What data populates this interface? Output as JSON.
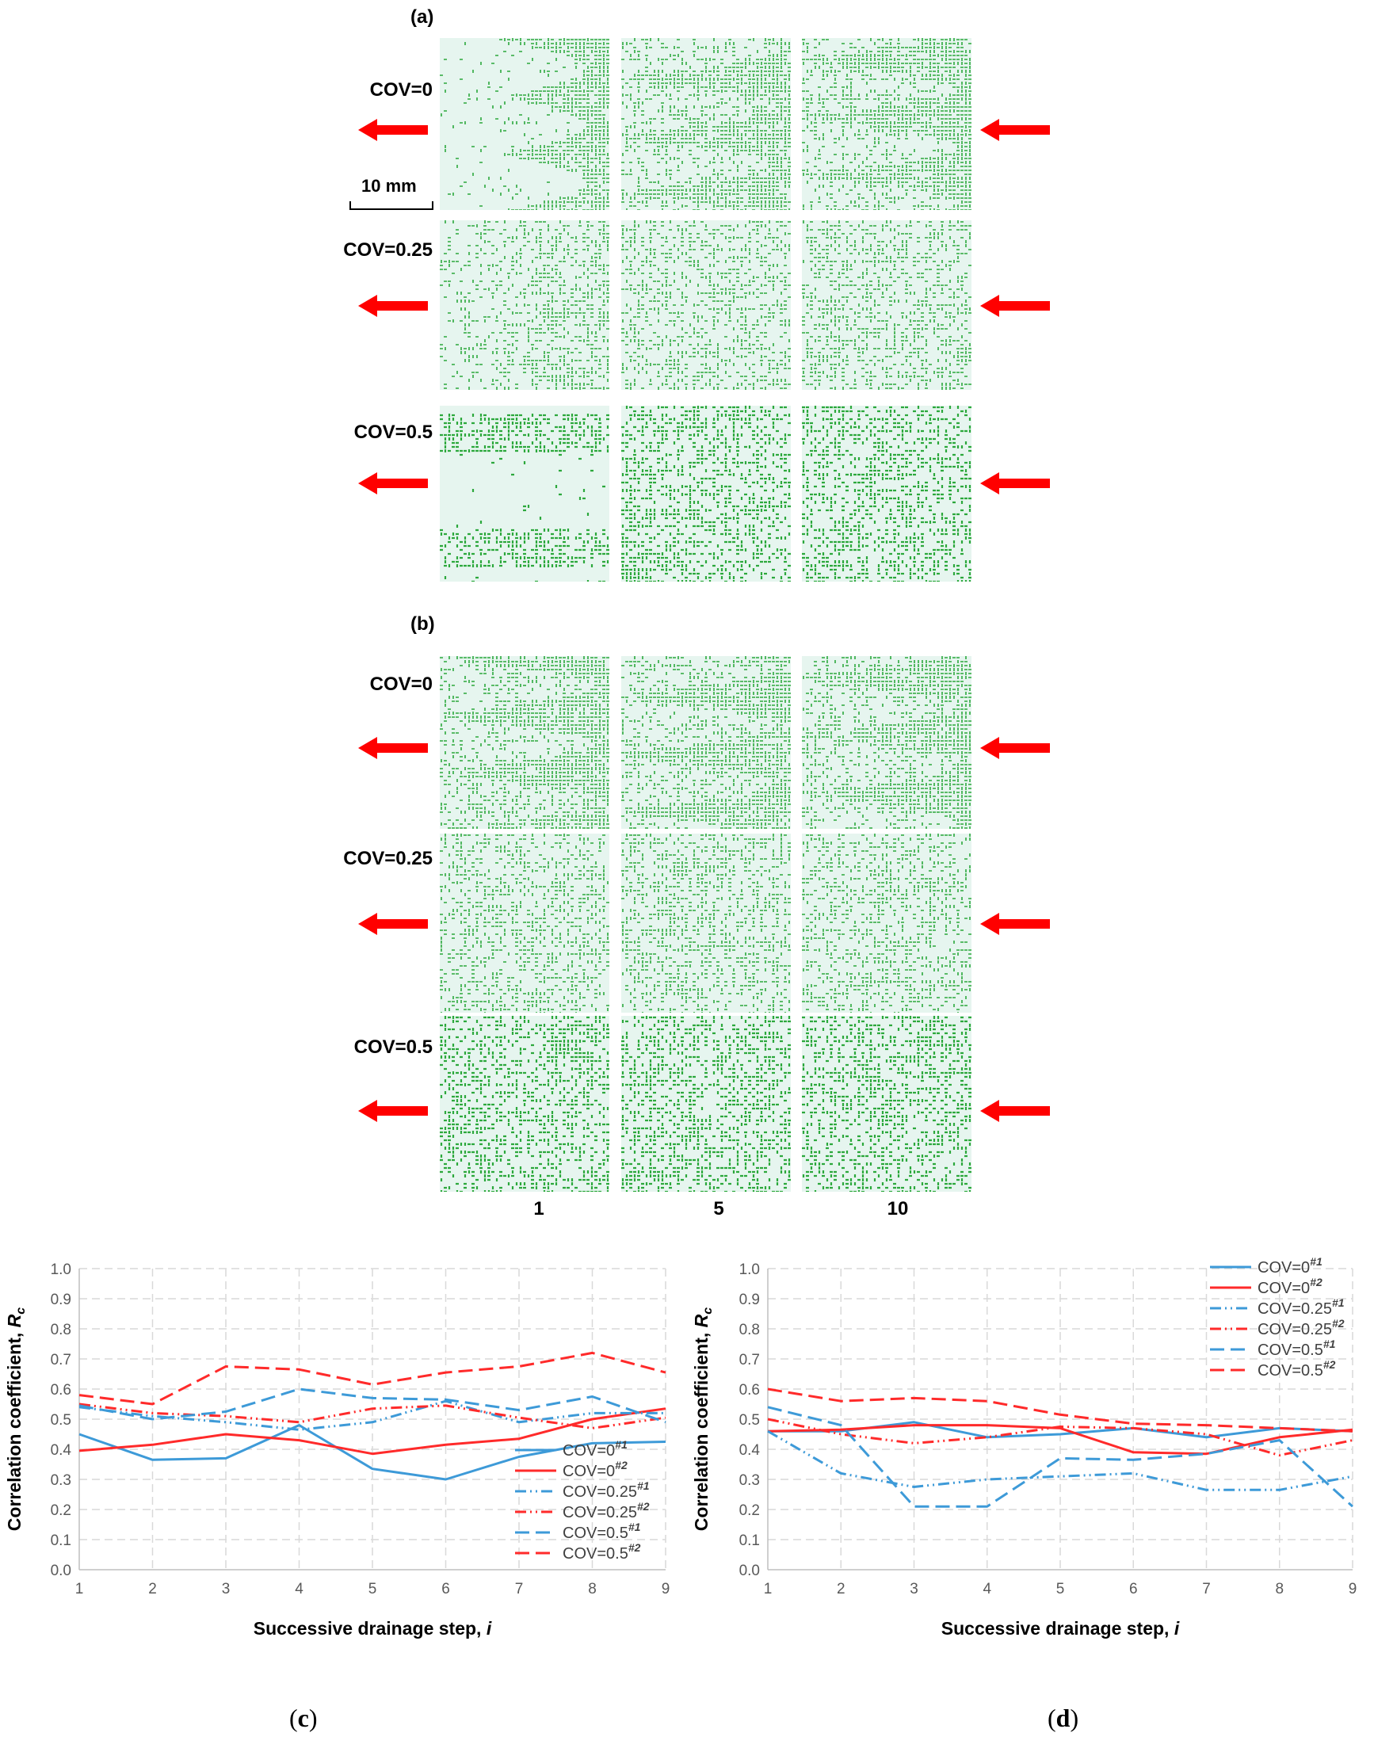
{
  "top": {
    "panel_a_label": "(a)",
    "panel_b_label": "(b)",
    "scale_bar_label": "10 mm",
    "row_labels": [
      "COV=0",
      "COV=0.25",
      "COV=0.5"
    ],
    "column_step_labels": [
      "1",
      "5",
      "10"
    ],
    "colors": {
      "fluid": "#2ca83c",
      "background": "#e6f5ef",
      "arrow": "#ff0000"
    }
  },
  "captions": {
    "c": "c",
    "d": "d"
  },
  "chart_data": [
    {
      "id": "c",
      "type": "line",
      "title": "",
      "xlabel": "Successive drainage step, ",
      "xlabel_var": "i",
      "ylabel": "Correlation coefficient, ",
      "ylabel_var": "R",
      "ylabel_sub": "c",
      "x": [
        1,
        2,
        3,
        4,
        5,
        6,
        7,
        8,
        9
      ],
      "xlim": [
        1,
        9
      ],
      "ylim": [
        0.0,
        1.0
      ],
      "yticks": [
        "0.0",
        "0.1",
        "0.2",
        "0.3",
        "0.4",
        "0.5",
        "0.6",
        "0.7",
        "0.8",
        "0.9",
        "1.0"
      ],
      "xticks": [
        "1",
        "2",
        "3",
        "4",
        "5",
        "6",
        "7",
        "8",
        "9"
      ],
      "grid": true,
      "legend_position": "bottom-right",
      "series": [
        {
          "name": "COV=0",
          "sup": "#1",
          "color": "#3d9ad8",
          "dash": "solid",
          "values": [
            0.45,
            0.365,
            0.37,
            0.48,
            0.335,
            0.3,
            0.375,
            0.42,
            0.425
          ]
        },
        {
          "name": "COV=0",
          "sup": "#2",
          "color": "#ff2a2a",
          "dash": "solid",
          "values": [
            0.395,
            0.415,
            0.45,
            0.43,
            0.385,
            0.415,
            0.435,
            0.5,
            0.535
          ]
        },
        {
          "name": "COV=0.25",
          "sup": "#1",
          "color": "#3d9ad8",
          "dash": "dashdotdot",
          "values": [
            0.54,
            0.51,
            0.49,
            0.465,
            0.49,
            0.56,
            0.49,
            0.52,
            0.52
          ]
        },
        {
          "name": "COV=0.25",
          "sup": "#2",
          "color": "#ff2a2a",
          "dash": "dashdotdot",
          "values": [
            0.55,
            0.52,
            0.51,
            0.49,
            0.535,
            0.545,
            0.505,
            0.47,
            0.505
          ]
        },
        {
          "name": "COV=0.5",
          "sup": "#1",
          "color": "#3d9ad8",
          "dash": "longdash",
          "values": [
            0.545,
            0.5,
            0.525,
            0.6,
            0.57,
            0.565,
            0.53,
            0.575,
            0.49
          ]
        },
        {
          "name": "COV=0.5",
          "sup": "#2",
          "color": "#ff2a2a",
          "dash": "longdash",
          "values": [
            0.58,
            0.55,
            0.675,
            0.665,
            0.615,
            0.655,
            0.675,
            0.72,
            0.655
          ]
        }
      ]
    },
    {
      "id": "d",
      "type": "line",
      "title": "",
      "xlabel": "Successive drainage step, ",
      "xlabel_var": "i",
      "ylabel": "Correlation coefficient, ",
      "ylabel_var": "R",
      "ylabel_sub": "c",
      "x": [
        1,
        2,
        3,
        4,
        5,
        6,
        7,
        8,
        9
      ],
      "xlim": [
        1,
        9
      ],
      "ylim": [
        0.0,
        1.0
      ],
      "yticks": [
        "0.0",
        "0.1",
        "0.2",
        "0.3",
        "0.4",
        "0.5",
        "0.6",
        "0.7",
        "0.8",
        "0.9",
        "1.0"
      ],
      "xticks": [
        "1",
        "2",
        "3",
        "4",
        "5",
        "6",
        "7",
        "8",
        "9"
      ],
      "grid": true,
      "legend_position": "top-right",
      "series": [
        {
          "name": "COV=0",
          "sup": "#1",
          "color": "#3d9ad8",
          "dash": "solid",
          "values": [
            0.46,
            0.46,
            0.49,
            0.44,
            0.45,
            0.47,
            0.44,
            0.47,
            0.46
          ]
        },
        {
          "name": "COV=0",
          "sup": "#2",
          "color": "#ff2a2a",
          "dash": "solid",
          "values": [
            0.46,
            0.465,
            0.48,
            0.48,
            0.47,
            0.39,
            0.385,
            0.44,
            0.465
          ]
        },
        {
          "name": "COV=0.25",
          "sup": "#1",
          "color": "#3d9ad8",
          "dash": "dashdotdot",
          "values": [
            0.46,
            0.32,
            0.275,
            0.3,
            0.31,
            0.32,
            0.265,
            0.265,
            0.31
          ]
        },
        {
          "name": "COV=0.25",
          "sup": "#2",
          "color": "#ff2a2a",
          "dash": "dashdotdot",
          "values": [
            0.5,
            0.45,
            0.42,
            0.44,
            0.475,
            0.47,
            0.45,
            0.38,
            0.43
          ]
        },
        {
          "name": "COV=0.5",
          "sup": "#1",
          "color": "#3d9ad8",
          "dash": "longdash",
          "values": [
            0.54,
            0.48,
            0.21,
            0.21,
            0.37,
            0.365,
            0.385,
            0.43,
            0.21
          ]
        },
        {
          "name": "COV=0.5",
          "sup": "#2",
          "color": "#ff2a2a",
          "dash": "longdash",
          "values": [
            0.6,
            0.56,
            0.57,
            0.56,
            0.515,
            0.485,
            0.48,
            0.47,
            0.46
          ]
        }
      ]
    }
  ]
}
